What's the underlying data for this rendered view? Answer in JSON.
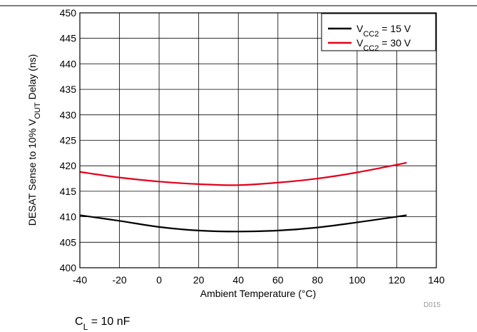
{
  "chart_data": {
    "type": "line",
    "title": "",
    "xlabel": {
      "main": "Ambient Temperature (",
      "unit": "°C",
      "close": ")"
    },
    "ylabel": {
      "pre": "DESAT Sense to 10% V",
      "sub": "OUT",
      "post": " Delay (ns)"
    },
    "xlim": [
      -40,
      140
    ],
    "ylim": [
      400,
      450
    ],
    "xticks": [
      -40,
      -20,
      0,
      20,
      40,
      60,
      80,
      100,
      120,
      140
    ],
    "yticks": [
      400,
      405,
      410,
      415,
      420,
      425,
      430,
      435,
      440,
      445,
      450
    ],
    "grid": true,
    "legend_position": "top-right",
    "series": [
      {
        "name": {
          "pre": "V",
          "sub": "CC2",
          "post": " = 15 V"
        },
        "color": "#000000",
        "x": [
          -40,
          -20,
          0,
          20,
          40,
          60,
          80,
          100,
          125
        ],
        "y": [
          410.3,
          409.2,
          408.0,
          407.3,
          407.1,
          407.3,
          407.9,
          408.9,
          410.3
        ]
      },
      {
        "name": {
          "pre": "V",
          "sub": "CC2",
          "post": " = 30 V"
        },
        "color": "#e3001b",
        "x": [
          -40,
          -20,
          0,
          20,
          40,
          60,
          80,
          100,
          125
        ],
        "y": [
          418.8,
          417.7,
          416.9,
          416.4,
          416.2,
          416.7,
          417.5,
          418.7,
          420.6
        ]
      }
    ]
  },
  "figure_id": "D015",
  "note": {
    "pre": "C",
    "sub": "L",
    "post": " = 10 nF"
  }
}
